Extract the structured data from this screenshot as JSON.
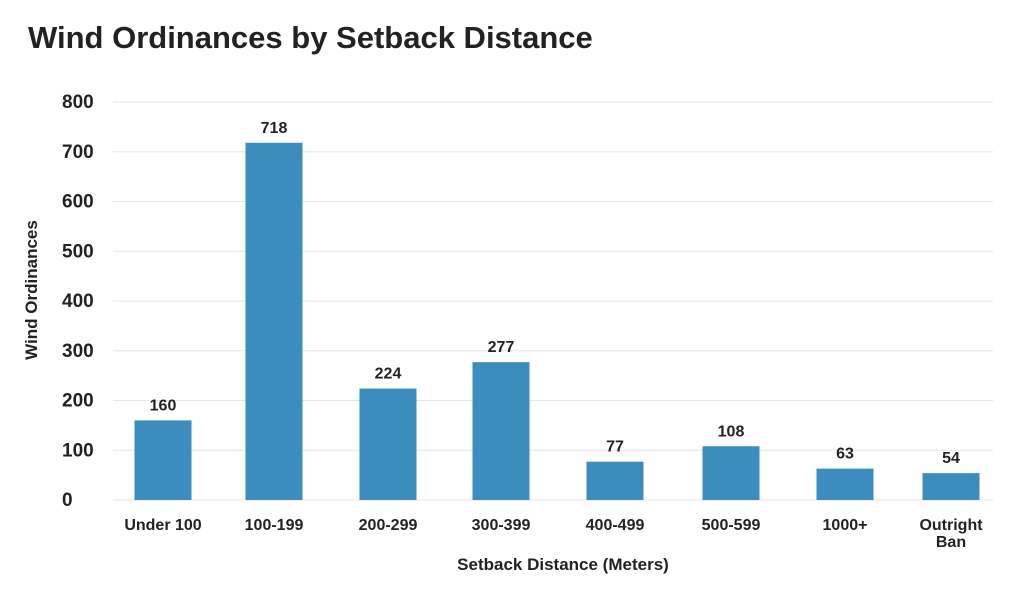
{
  "chart_data": {
    "type": "bar",
    "title": "Wind Ordinances by Setback Distance",
    "xlabel": "Setback Distance (Meters)",
    "ylabel": "Wind Ordinances",
    "categories": [
      "Under 100",
      "100-199",
      "200-299",
      "300-399",
      "400-499",
      "500-599",
      "1000+",
      "Outright Ban"
    ],
    "values": [
      160,
      718,
      224,
      277,
      77,
      108,
      63,
      54
    ],
    "value_labels": [
      "160",
      "718",
      "224",
      "277",
      "77",
      "108",
      "63",
      "54"
    ],
    "ylim": [
      0,
      800
    ],
    "yticks": [
      0,
      100,
      200,
      300,
      400,
      500,
      600,
      700,
      800
    ],
    "grid": true,
    "legend": "none",
    "colors": {
      "bar": "#3a8dbd",
      "grid": "#e6e6e6",
      "text": "#222222"
    }
  }
}
